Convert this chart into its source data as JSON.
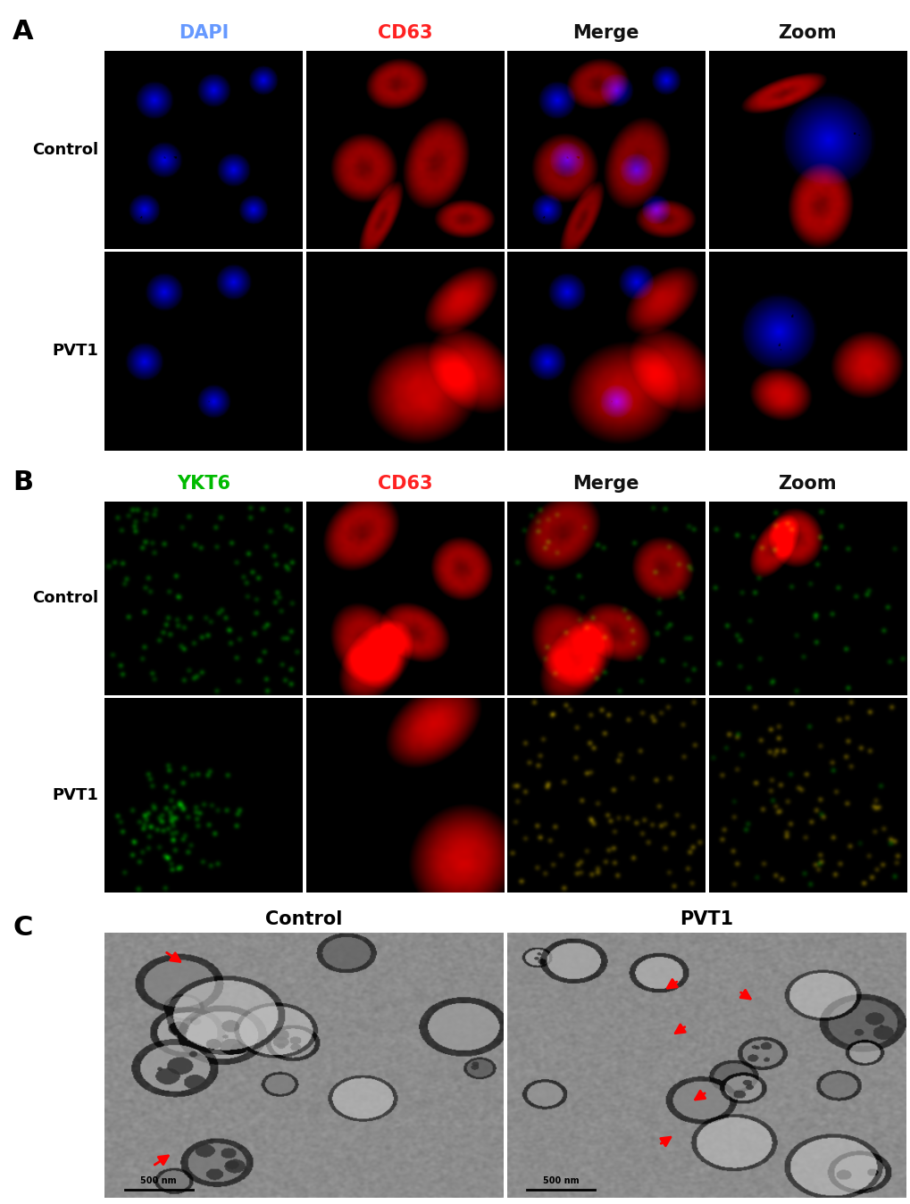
{
  "figure_width": 10.2,
  "figure_height": 13.49,
  "dpi": 100,
  "bg_color": "#ffffff",
  "section_A": {
    "label": "A",
    "col_headers": [
      "DAPI",
      "CD63",
      "Merge",
      "Zoom"
    ],
    "col_header_colors": [
      "#6699ff",
      "#ff2222",
      "#111111",
      "#111111"
    ],
    "row_labels": [
      "Control",
      "PVT1"
    ],
    "n_rows": 2,
    "n_cols": 4
  },
  "section_B": {
    "label": "B",
    "col_headers": [
      "YKT6",
      "CD63",
      "Merge",
      "Zoom"
    ],
    "col_header_colors": [
      "#00bb00",
      "#ff2222",
      "#111111",
      "#111111"
    ],
    "row_labels": [
      "Control",
      "PVT1"
    ],
    "n_rows": 2,
    "n_cols": 4
  },
  "section_C": {
    "label": "C",
    "col_headers": [
      "Control",
      "PVT1"
    ],
    "n_rows": 1,
    "n_cols": 2
  },
  "label_fontsize": 22,
  "header_fontsize": 15,
  "row_label_fontsize": 13
}
